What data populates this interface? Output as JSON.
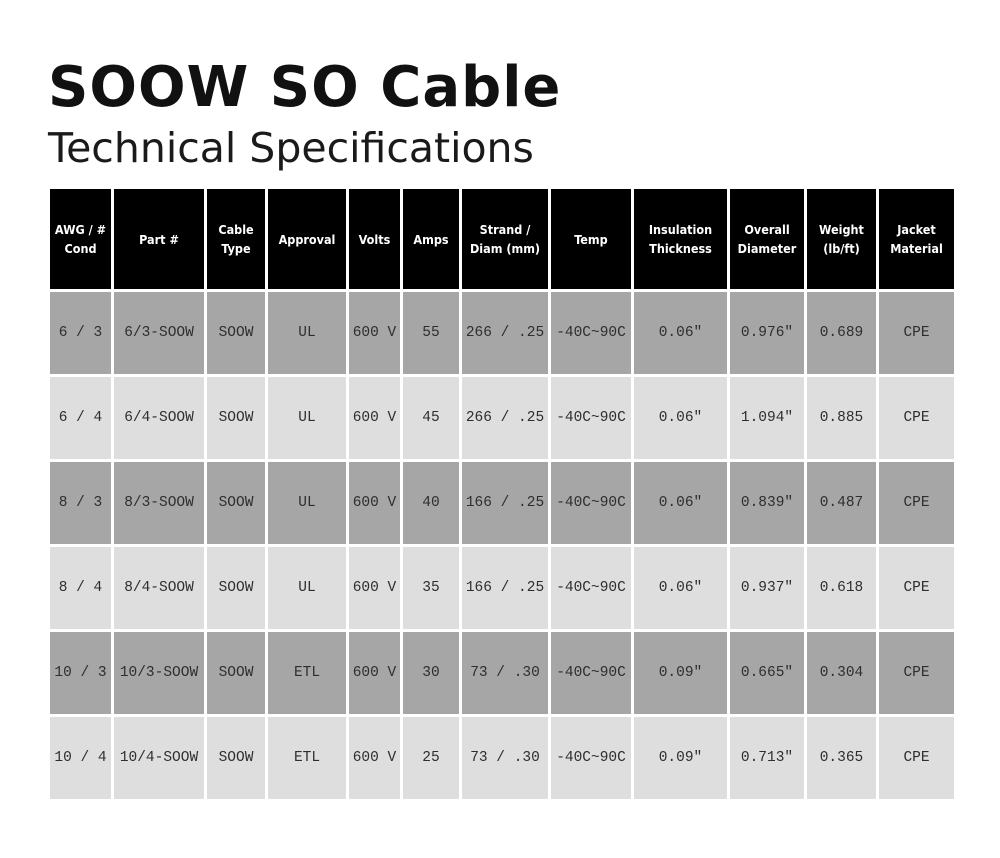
{
  "title": "SOOW SO Cable",
  "subtitle": "Technical Specifications",
  "table": {
    "headers": [
      "AWG / #\nCond",
      "Part #",
      "Cable\nType",
      "Approval",
      "Volts",
      "Amps",
      "Strand /\nDiam  (mm)",
      "Temp",
      "Insulation\nThickness",
      "Overall\nDiameter",
      "Weight\n(lb/ft)",
      "Jacket\nMaterial"
    ],
    "rows": [
      [
        "6 / 3",
        "6/3-SOOW",
        "SOOW",
        "UL",
        "600 V",
        "55",
        "266 / .25",
        "-40C~90C",
        "0.06\"",
        "0.976\"",
        "0.689",
        "CPE"
      ],
      [
        "6 / 4",
        "6/4-SOOW",
        "SOOW",
        "UL",
        "600 V",
        "45",
        "266 / .25",
        "-40C~90C",
        "0.06\"",
        "1.094\"",
        "0.885",
        "CPE"
      ],
      [
        "8 / 3",
        "8/3-SOOW",
        "SOOW",
        "UL",
        "600 V",
        "40",
        "166 / .25",
        "-40C~90C",
        "0.06\"",
        "0.839\"",
        "0.487",
        "CPE"
      ],
      [
        "8 / 4",
        "8/4-SOOW",
        "SOOW",
        "UL",
        "600 V",
        "35",
        "166 / .25",
        "-40C~90C",
        "0.06\"",
        "0.937\"",
        "0.618",
        "CPE"
      ],
      [
        "10 / 3",
        "10/3-SOOW",
        "SOOW",
        "ETL",
        "600 V",
        "30",
        "73 / .30",
        "-40C~90C",
        "0.09\"",
        "0.665\"",
        "0.304",
        "CPE"
      ],
      [
        "10 / 4",
        "10/4-SOOW",
        "SOOW",
        "ETL",
        "600 V",
        "25",
        "73 / .30",
        "-40C~90C",
        "0.09\"",
        "0.713\"",
        "0.365",
        "CPE"
      ]
    ]
  },
  "colors": {
    "header_bg": "#000000",
    "header_text": "#ffffff",
    "row_dark": "#a6a6a6",
    "row_light": "#dedede",
    "cell_text": "#2e2e2e"
  }
}
